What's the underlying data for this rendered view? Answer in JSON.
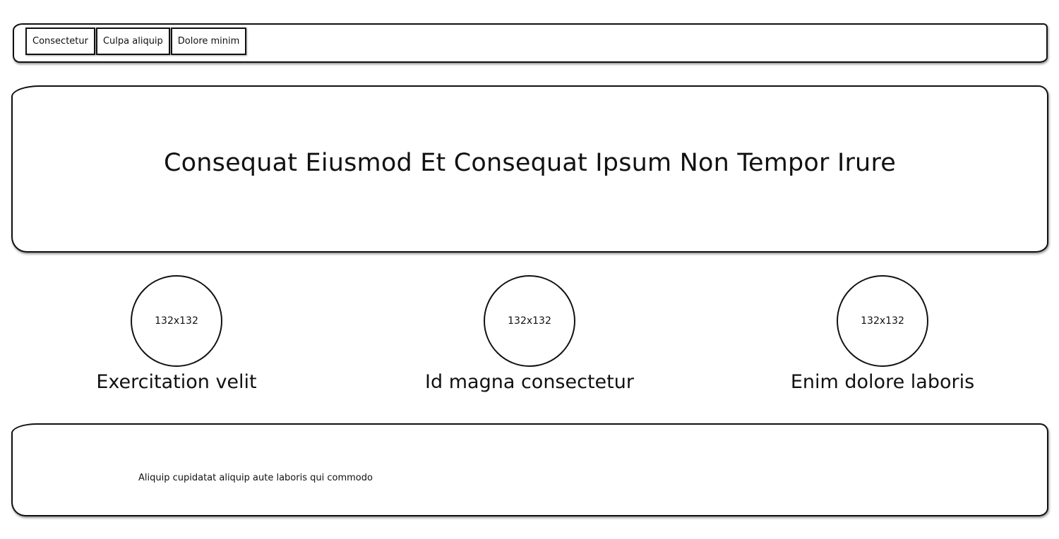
{
  "nav": {
    "tabs": [
      {
        "label": "Consectetur"
      },
      {
        "label": "Culpa aliquip"
      },
      {
        "label": "Dolore minim"
      }
    ]
  },
  "hero": {
    "title": "Consequat Eiusmod Et Consequat Ipsum Non Tempor Irure"
  },
  "features": [
    {
      "image_placeholder": "132x132",
      "label": "Exercitation velit"
    },
    {
      "image_placeholder": "132x132",
      "label": "Id magna consectetur"
    },
    {
      "image_placeholder": "132x132",
      "label": "Enim dolore laboris"
    }
  ],
  "footer": {
    "text": "Aliquip cupidatat aliquip aute laboris qui commodo"
  }
}
